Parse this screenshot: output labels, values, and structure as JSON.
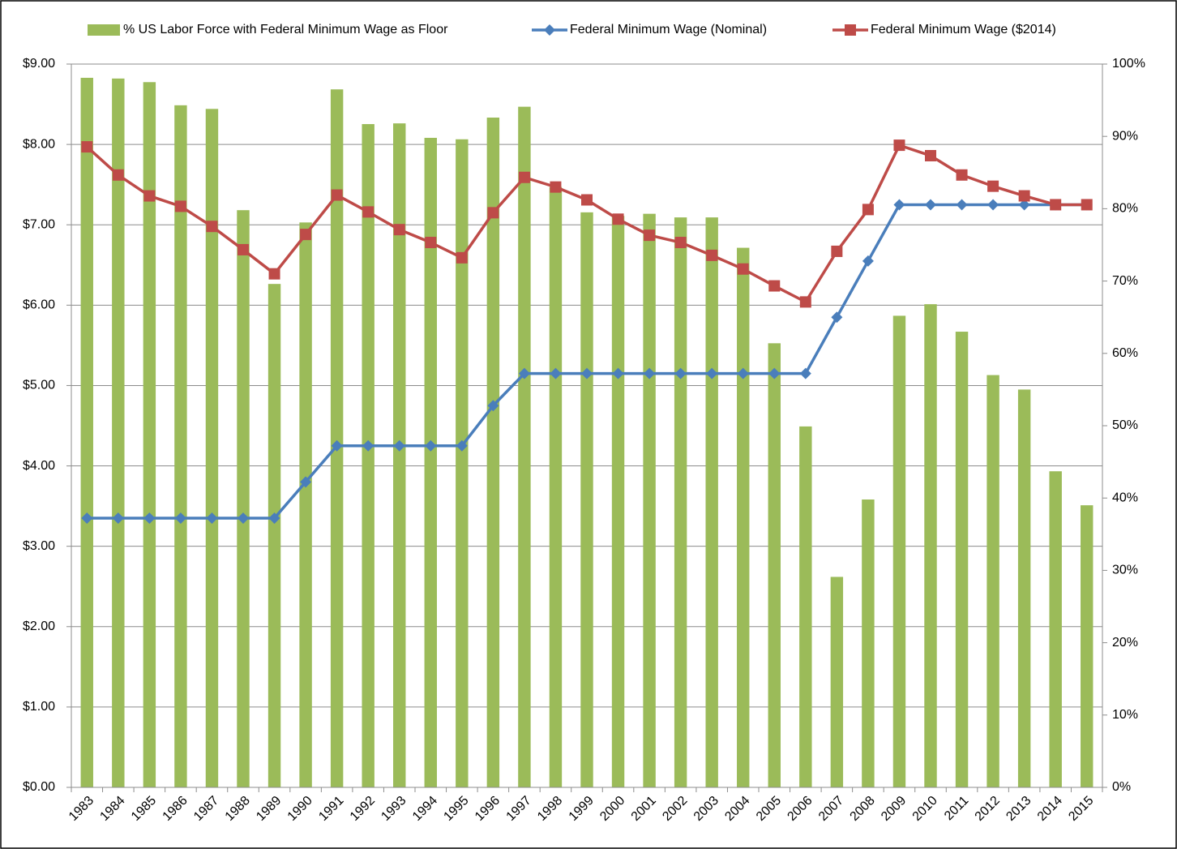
{
  "chart_data": {
    "type": "combo",
    "categories": [
      "1983",
      "1984",
      "1985",
      "1986",
      "1987",
      "1988",
      "1989",
      "1990",
      "1991",
      "1992",
      "1993",
      "1994",
      "1995",
      "1996",
      "1997",
      "1998",
      "1999",
      "2000",
      "2001",
      "2002",
      "2003",
      "2004",
      "2005",
      "2006",
      "2007",
      "2008",
      "2009",
      "2010",
      "2011",
      "2012",
      "2013",
      "2014",
      "2015"
    ],
    "series": [
      {
        "name": "% US Labor Force with Federal Minimum Wage as Floor",
        "type": "bar",
        "axis": "y2",
        "color": "#9bbb59",
        "values": [
          98.1,
          98.0,
          97.5,
          94.3,
          93.8,
          79.8,
          69.6,
          78.1,
          96.5,
          91.7,
          91.8,
          89.8,
          89.6,
          92.6,
          94.1,
          83,
          79.5,
          79,
          79.3,
          78.8,
          78.8,
          74.6,
          61.4,
          49.9,
          29.1,
          39.8,
          65.2,
          66.8,
          63.0,
          57.0,
          55.0,
          43.7,
          39.0
        ]
      },
      {
        "name": "Federal Minimum Wage (Nominal)",
        "type": "line",
        "marker": "diamond",
        "color": "#4a7ebb",
        "values": [
          3.35,
          3.35,
          3.35,
          3.35,
          3.35,
          3.35,
          3.35,
          3.8,
          4.25,
          4.25,
          4.25,
          4.25,
          4.25,
          4.75,
          5.15,
          5.15,
          5.15,
          5.15,
          5.15,
          5.15,
          5.15,
          5.15,
          5.15,
          5.15,
          5.85,
          6.55,
          7.25,
          7.25,
          7.25,
          7.25,
          7.25,
          7.25,
          7.25
        ]
      },
      {
        "name": "Federal Minimum Wage ($2014)",
        "type": "line",
        "marker": "square",
        "color": "#be4b48",
        "values": [
          7.97,
          7.62,
          7.36,
          7.23,
          6.98,
          6.69,
          6.39,
          6.88,
          7.37,
          7.16,
          6.94,
          6.78,
          6.59,
          7.15,
          7.59,
          7.47,
          7.31,
          7.07,
          6.87,
          6.78,
          6.62,
          6.45,
          6.24,
          6.04,
          6.67,
          7.19,
          7.99,
          7.86,
          7.62,
          7.48,
          7.36,
          7.25,
          7.25
        ]
      }
    ],
    "ylim": [
      0,
      9
    ],
    "yticks": [
      {
        "value": 0,
        "label": "$0.00"
      },
      {
        "value": 1,
        "label": "$1.00"
      },
      {
        "value": 2,
        "label": "$2.00"
      },
      {
        "value": 3,
        "label": "$3.00"
      },
      {
        "value": 4,
        "label": "$4.00"
      },
      {
        "value": 5,
        "label": "$5.00"
      },
      {
        "value": 6,
        "label": "$6.00"
      },
      {
        "value": 7,
        "label": "$7.00"
      },
      {
        "value": 8,
        "label": "$8.00"
      },
      {
        "value": 9,
        "label": "$9.00"
      }
    ],
    "y2lim": [
      0,
      100
    ],
    "y2ticks": [
      {
        "value": 0,
        "label": "0%"
      },
      {
        "value": 10,
        "label": "10%"
      },
      {
        "value": 20,
        "label": "20%"
      },
      {
        "value": 30,
        "label": "30%"
      },
      {
        "value": 40,
        "label": "40%"
      },
      {
        "value": 50,
        "label": "50%"
      },
      {
        "value": 60,
        "label": "60%"
      },
      {
        "value": 70,
        "label": "70%"
      },
      {
        "value": 80,
        "label": "80%"
      },
      {
        "value": 90,
        "label": "90%"
      },
      {
        "value": 100,
        "label": "100%"
      }
    ],
    "grid": true,
    "legend": "top"
  }
}
